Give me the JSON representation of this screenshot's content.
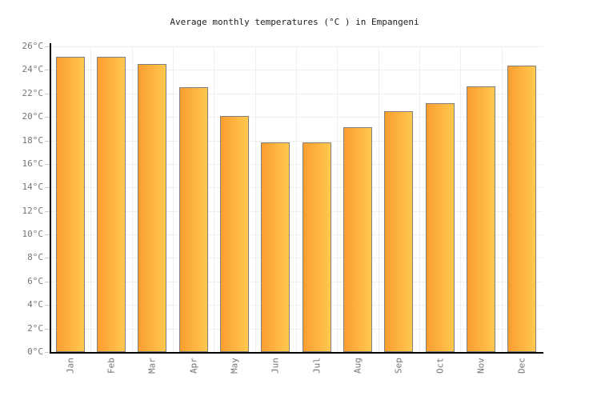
{
  "chart_data": {
    "type": "bar",
    "title": "Average monthly temperatures (°C ) in Empangeni",
    "categories": [
      "Jan",
      "Feb",
      "Mar",
      "Apr",
      "May",
      "Jun",
      "Jul",
      "Aug",
      "Sep",
      "Oct",
      "Nov",
      "Dec"
    ],
    "values": [
      25.1,
      25.1,
      24.5,
      22.5,
      20.1,
      17.8,
      17.8,
      19.1,
      20.5,
      21.2,
      22.6,
      24.4
    ],
    "unit": "°C",
    "xlabel": "",
    "ylabel": "",
    "ylim": [
      0,
      26
    ],
    "ytick_step": 2,
    "ytick_suffix": "°C",
    "ytick_labels": [
      "0°C",
      "2°C",
      "4°C",
      "6°C",
      "8°C",
      "10°C",
      "12°C",
      "14°C",
      "16°C",
      "18°C",
      "20°C",
      "22°C",
      "24°C",
      "26°C"
    ],
    "grid": true,
    "legend": false,
    "bar_orientation": "vertical",
    "x_label_rotation_deg": -90
  },
  "colors": {
    "bar_gradient_left": "#fb9e30",
    "bar_gradient_right": "#ffc84e",
    "bar_border": "#7f7f7f",
    "gridline": "#eeeeee",
    "tick": "#cccccc",
    "axis_line": "#000000",
    "title_text": "#222222",
    "axis_label_text": "#767676",
    "background": "#ffffff"
  }
}
